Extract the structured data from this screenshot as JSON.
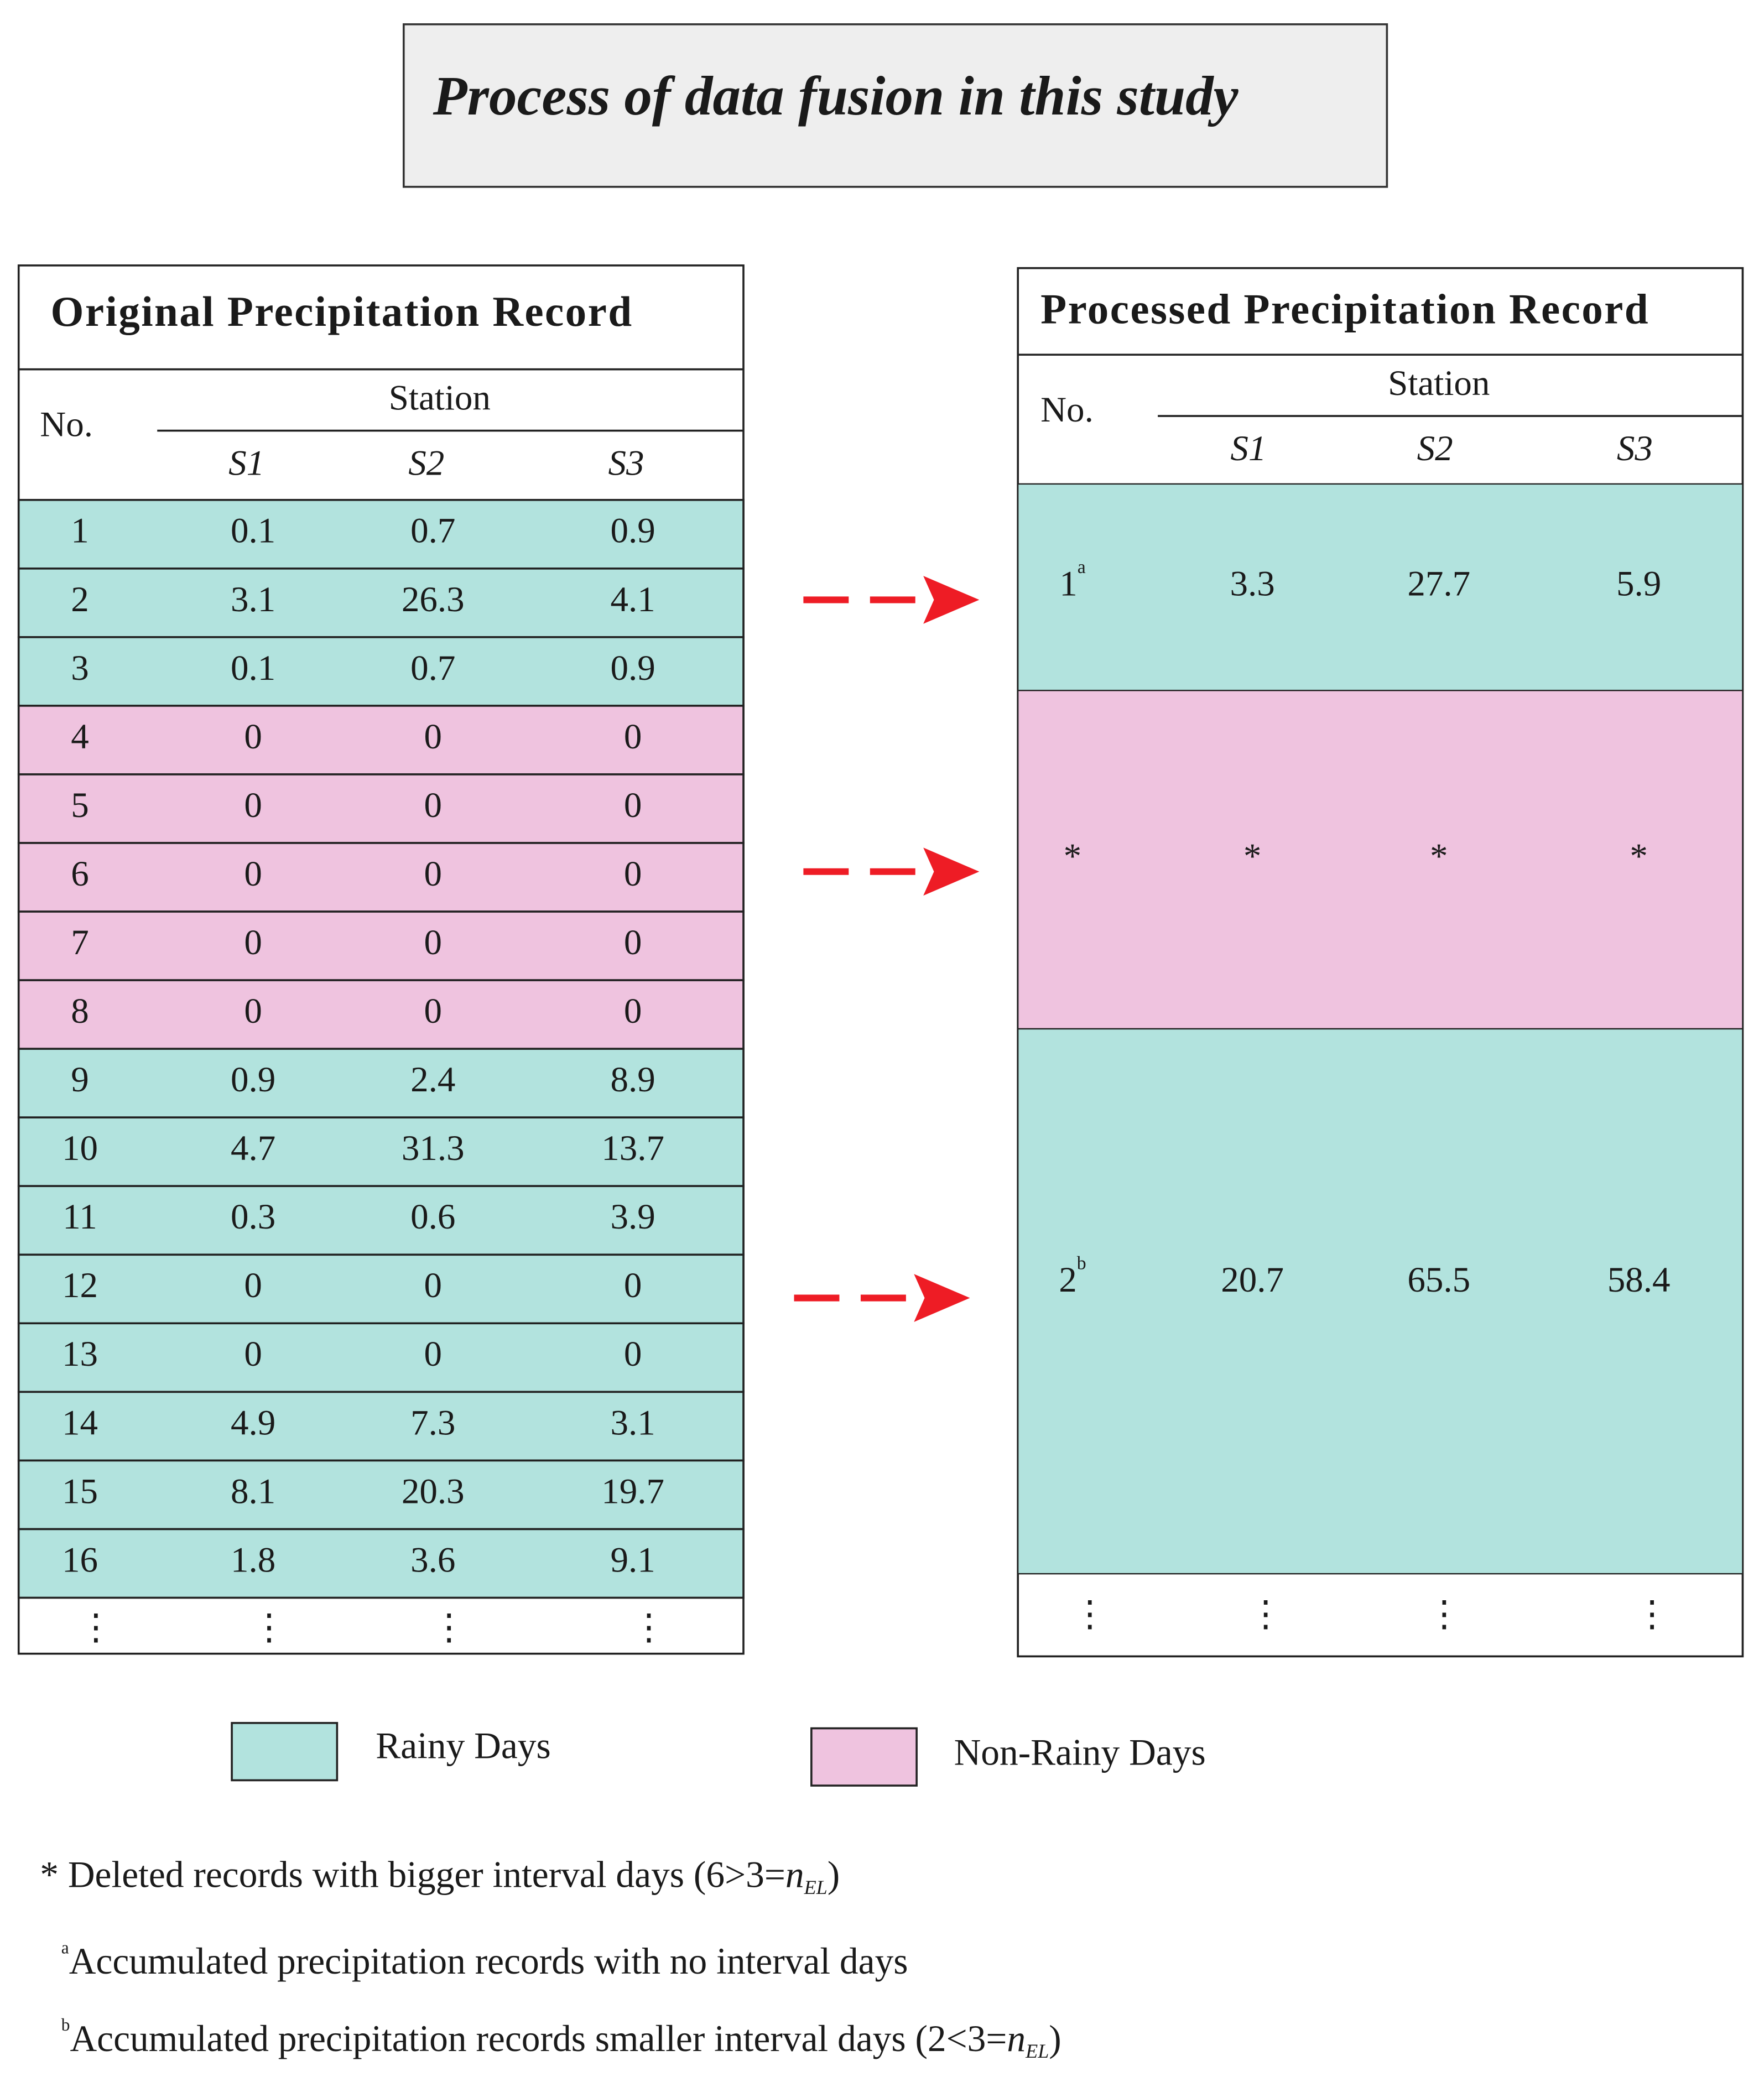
{
  "title": "Process of data fusion in this study",
  "original": {
    "title": "Original Precipitation Record",
    "header": {
      "no": "No.",
      "station": "Station",
      "stations": [
        "S1",
        "S2",
        "S3"
      ]
    },
    "rows": [
      {
        "cells": [
          "1",
          "0.1",
          "0.7",
          "0.9"
        ],
        "color": "#b2e3de"
      },
      {
        "cells": [
          "2",
          "3.1",
          "26.3",
          "4.1"
        ],
        "color": "#b2e3de"
      },
      {
        "cells": [
          "3",
          "0.1",
          "0.7",
          "0.9"
        ],
        "color": "#b2e3de"
      },
      {
        "cells": [
          "4",
          "0",
          "0",
          "0"
        ],
        "color": "#efc3df"
      },
      {
        "cells": [
          "5",
          "0",
          "0",
          "0"
        ],
        "color": "#efc3df"
      },
      {
        "cells": [
          "6",
          "0",
          "0",
          "0"
        ],
        "color": "#efc3df"
      },
      {
        "cells": [
          "7",
          "0",
          "0",
          "0"
        ],
        "color": "#efc3df"
      },
      {
        "cells": [
          "8",
          "0",
          "0",
          "0"
        ],
        "color": "#efc3df"
      },
      {
        "cells": [
          "9",
          "0.9",
          "2.4",
          "8.9"
        ],
        "color": "#b2e3de"
      },
      {
        "cells": [
          "10",
          "4.7",
          "31.3",
          "13.7"
        ],
        "color": "#b2e3de"
      },
      {
        "cells": [
          "11",
          "0.3",
          "0.6",
          "3.9"
        ],
        "color": "#b2e3de"
      },
      {
        "cells": [
          "12",
          "0",
          "0",
          "0"
        ],
        "color": "#b2e3de"
      },
      {
        "cells": [
          "13",
          "0",
          "0",
          "0"
        ],
        "color": "#b2e3de"
      },
      {
        "cells": [
          "14",
          "4.9",
          "7.3",
          "3.1"
        ],
        "color": "#b2e3de"
      },
      {
        "cells": [
          "15",
          "8.1",
          "20.3",
          "19.7"
        ],
        "color": "#b2e3de"
      },
      {
        "cells": [
          "16",
          "1.8",
          "3.6",
          "9.1"
        ],
        "color": "#b2e3de"
      }
    ],
    "ellipsis": [
      "⋮",
      "⋮",
      "⋮",
      "⋮"
    ]
  },
  "processed": {
    "title": "Processed Precipitation Record",
    "header": {
      "no": "No.",
      "station": "Station",
      "stations": [
        "S1",
        "S2",
        "S3"
      ]
    },
    "rows": [
      {
        "no": "1",
        "sup": "a",
        "cells": [
          "3.3",
          "27.7",
          "5.9"
        ],
        "color": "#b2e3de"
      },
      {
        "no": "*",
        "cells": [
          "*",
          "*",
          "*"
        ],
        "color": "#efc3df"
      },
      {
        "no": "2",
        "sup": "b",
        "cells": [
          "20.7",
          "65.5",
          "58.4"
        ],
        "color": "#b2e3de"
      }
    ],
    "ellipsis": [
      "⋮",
      "⋮",
      "⋮",
      "⋮"
    ]
  },
  "legend": [
    {
      "label": "Rainy Days",
      "color": "#b2e3de"
    },
    {
      "label": "Non-Rainy Days",
      "color": "#efc3df"
    }
  ],
  "notes": [
    {
      "mark": "*",
      "text": " Deleted records with bigger interval days (6>3=",
      "var": "n",
      "sub": "EL",
      "end": ")"
    },
    {
      "mark": "a",
      "text": "Accumulated  precipitation records with no interval days"
    },
    {
      "mark": "b",
      "text": "Accumulated  precipitation records smaller interval days (2<3=",
      "var": "n",
      "sub": "EL",
      "end": ")"
    }
  ]
}
